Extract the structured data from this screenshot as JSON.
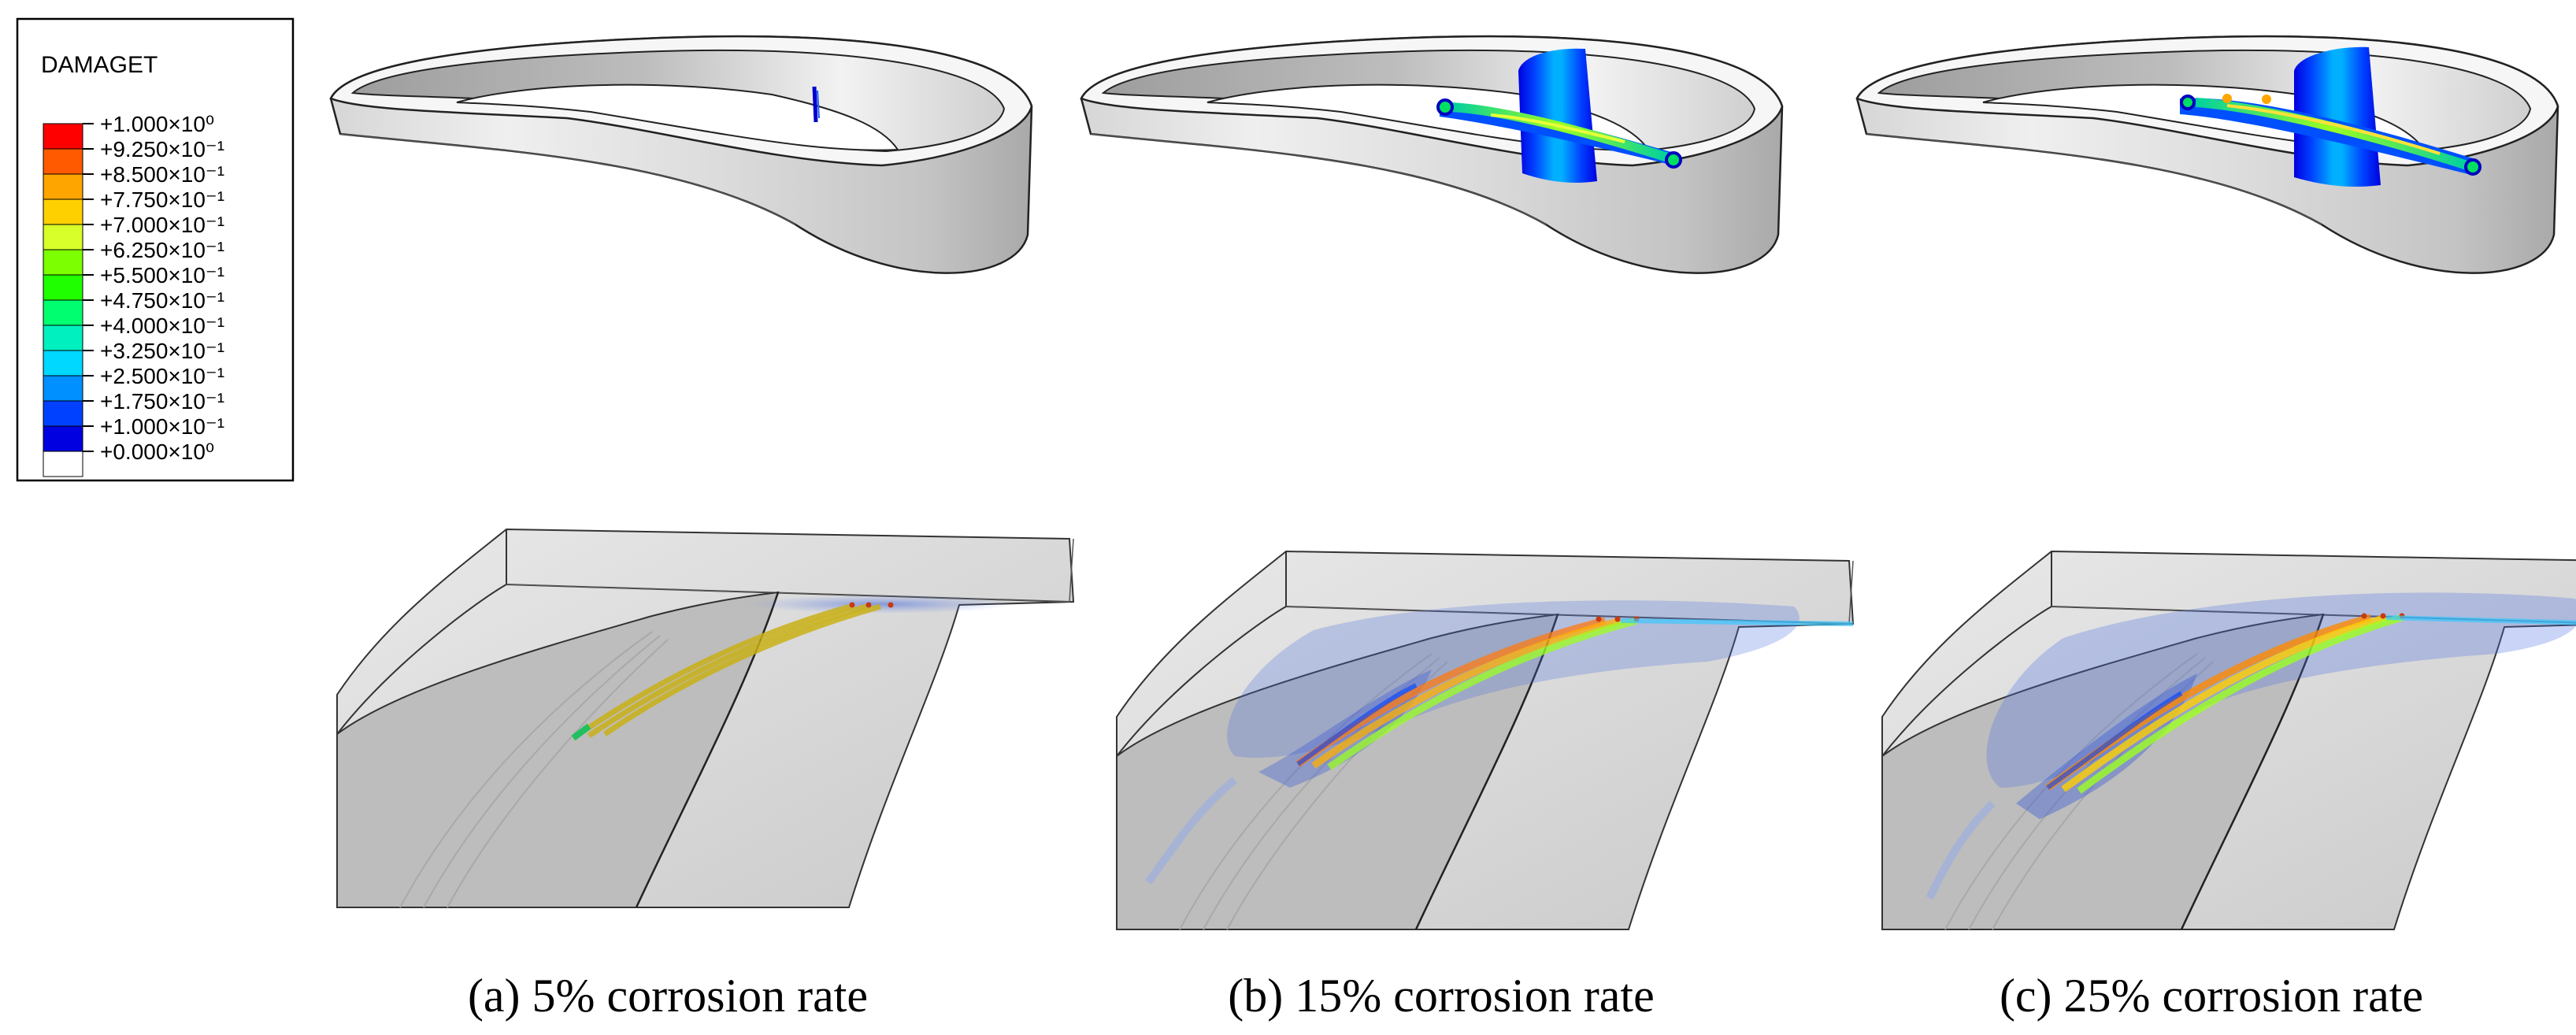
{
  "legend": {
    "title": "DAMAGET",
    "labels": [
      "+1.000×10⁰",
      "+9.250×10⁻¹",
      "+8.500×10⁻¹",
      "+7.750×10⁻¹",
      "+7.000×10⁻¹",
      "+6.250×10⁻¹",
      "+5.500×10⁻¹",
      "+4.750×10⁻¹",
      "+4.000×10⁻¹",
      "+3.250×10⁻¹",
      "+2.500×10⁻¹",
      "+1.750×10⁻¹",
      "+1.000×10⁻¹",
      "+0.000×10⁰"
    ],
    "colors": [
      "#ff0000",
      "#ff5a00",
      "#ffa500",
      "#ffd000",
      "#d8ff2a",
      "#7cff00",
      "#20ff00",
      "#00ff70",
      "#00f0c0",
      "#00d8ff",
      "#0090ff",
      "#0040ff",
      "#0000e0",
      "#ffffff"
    ]
  },
  "panels": [
    {
      "caption": "(a) 5% corrosion rate"
    },
    {
      "caption": "(b) 15% corrosion rate"
    },
    {
      "caption": "(c) 25% corrosion rate"
    }
  ]
}
